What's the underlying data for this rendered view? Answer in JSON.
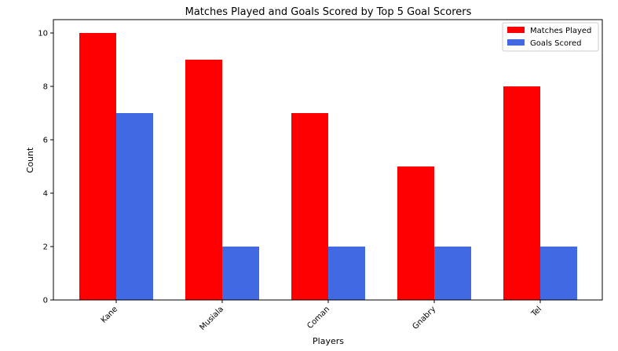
{
  "chart_data": {
    "type": "bar",
    "title": "Matches Played and Goals Scored by Top 5 Goal Scorers",
    "xlabel": "Players",
    "ylabel": "Count",
    "categories": [
      "Kane",
      "Musiala",
      "Coman",
      "Gnabry",
      "Tel"
    ],
    "series": [
      {
        "name": "Matches Played",
        "values": [
          10,
          9,
          7,
          5,
          8
        ],
        "color": "#ff0000"
      },
      {
        "name": "Goals Scored",
        "values": [
          7,
          2,
          2,
          2,
          2
        ],
        "color": "#4169e1"
      }
    ],
    "ylim": [
      0,
      10.5
    ],
    "yticks": [
      0,
      2,
      4,
      6,
      8,
      10
    ],
    "grid": false,
    "legend_position": "top-right"
  }
}
